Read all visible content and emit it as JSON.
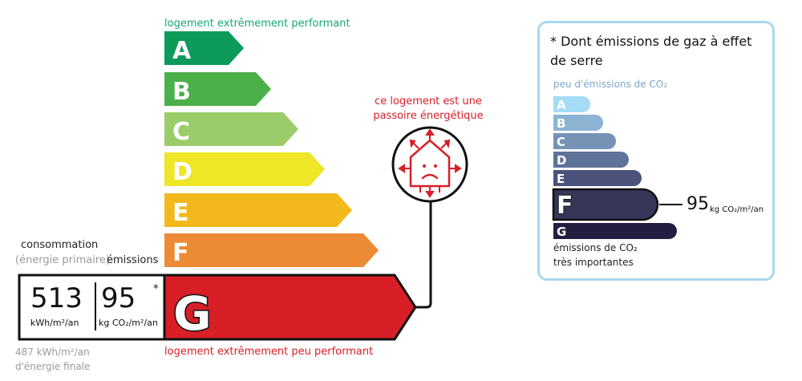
{
  "energy_scale": {
    "top_label": "logement extrêmement performant",
    "bottom_label": "logement extrêmement peu performant",
    "classes": [
      {
        "letter": "A",
        "color": "#0d9a5b"
      },
      {
        "letter": "B",
        "color": "#4bb04a"
      },
      {
        "letter": "C",
        "color": "#9ccc6a"
      },
      {
        "letter": "D",
        "color": "#eee626"
      },
      {
        "letter": "E",
        "color": "#f2b81c"
      },
      {
        "letter": "F",
        "color": "#ec8a35"
      },
      {
        "letter": "G",
        "color": "#d81f27"
      }
    ],
    "current_class": "G"
  },
  "consumption": {
    "label": "consommation",
    "sublabel": "(énergie primaire)",
    "emissions_label": "émissions",
    "primary_value": "513",
    "primary_unit": "kWh/m²/an",
    "emission_value": "95",
    "emission_unit": "kg CO₂/m²/an",
    "asterisk": "*",
    "final_energy_line1": "487 kWh/m²/an",
    "final_energy_line2": "d'énergie finale"
  },
  "passoire": {
    "text": "ce logement est une passoire énergétique",
    "icon": "leaky-house-sad-icon",
    "color": "#d81f27"
  },
  "ges_panel": {
    "title": "* Dont émissions de gaz à effet de serre",
    "top_label": "peu d'émissions de CO₂",
    "bottom_label_1": "émissions de CO₂",
    "bottom_label_2": "très importantes",
    "classes": [
      {
        "letter": "A",
        "color": "#a4dbf6"
      },
      {
        "letter": "B",
        "color": "#8cb4d2"
      },
      {
        "letter": "C",
        "color": "#7593b5"
      },
      {
        "letter": "D",
        "color": "#5f729a"
      },
      {
        "letter": "E",
        "color": "#4b537d"
      },
      {
        "letter": "F",
        "color": "#363659"
      },
      {
        "letter": "G",
        "color": "#231e3f"
      }
    ],
    "current_class": "F",
    "value": "95",
    "unit": "kg CO₂/m²/an",
    "border_color": "#a8d8ef"
  }
}
